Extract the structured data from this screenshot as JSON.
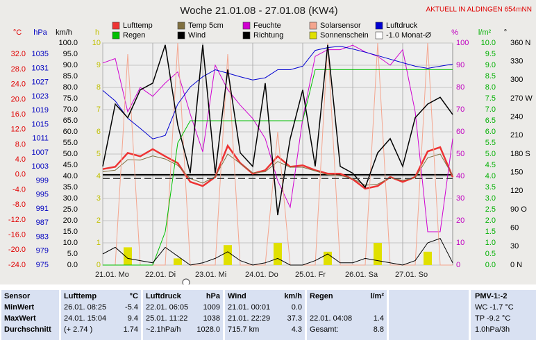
{
  "chart_data": {
    "type": "line",
    "title": "Woche 21.01.08 - 27.01.08 (KW4)",
    "subtitle": "AKTUELL IN ALDINGEN 654mNN",
    "x": [
      0,
      6,
      12,
      18,
      24,
      30,
      36,
      42,
      48,
      54,
      60,
      66,
      72,
      78,
      84,
      90,
      96,
      102,
      108,
      114,
      120,
      126,
      132,
      138,
      144,
      150,
      156,
      162,
      168
    ],
    "xlim": [
      0,
      168
    ],
    "xticks": [
      {
        "value": 0,
        "label": "21.01. Mo"
      },
      {
        "value": 24,
        "label": "22.01. Di"
      },
      {
        "value": 48,
        "label": "23.01. Mi"
      },
      {
        "value": 72,
        "label": "24.01. Do"
      },
      {
        "value": 96,
        "label": "25.01. Fr"
      },
      {
        "value": 120,
        "label": "26.01. Sa"
      },
      {
        "value": 144,
        "label": "27.01. So"
      }
    ],
    "grid": true,
    "axes": [
      {
        "label": "°C",
        "color": "#e00000",
        "ylim": [
          -24,
          35
        ],
        "yticks": [
          {
            "value": 32,
            "label": "32.0"
          },
          {
            "value": 28,
            "label": "28.0"
          },
          {
            "value": 24,
            "label": "24.0"
          },
          {
            "value": 20,
            "label": "20.0"
          },
          {
            "value": 16,
            "label": "16.0"
          },
          {
            "value": 12,
            "label": "12.0"
          },
          {
            "value": 8,
            "label": "8.0"
          },
          {
            "value": 4,
            "label": "4.0"
          },
          {
            "value": 0,
            "label": "0.0"
          },
          {
            "value": -4,
            "label": "-4.0"
          },
          {
            "value": -8,
            "label": "-8.0"
          },
          {
            "value": -12,
            "label": "-12.0"
          },
          {
            "value": -16,
            "label": "-16.0"
          },
          {
            "value": -20,
            "label": "-20.0"
          },
          {
            "value": -24,
            "label": "-24.0"
          }
        ]
      },
      {
        "label": "hPa",
        "color": "#0000c0",
        "ylim": [
          975,
          1038.2
        ],
        "yticks": [
          1035,
          1031,
          1027,
          1023,
          1019,
          1015,
          1011,
          1007,
          1003,
          999,
          995,
          991,
          987,
          983,
          979,
          975
        ]
      },
      {
        "label": "km/h",
        "color": "#000000",
        "ylim": [
          0,
          100
        ],
        "yticks": [
          {
            "value": 100,
            "label": "100.0"
          },
          {
            "value": 95,
            "label": "95.0"
          },
          {
            "value": 90,
            "label": "90.0"
          },
          {
            "value": 85,
            "label": "85.0"
          },
          {
            "value": 80,
            "label": "80.0"
          },
          {
            "value": 75,
            "label": "75.0"
          },
          {
            "value": 70,
            "label": "70.0"
          },
          {
            "value": 65,
            "label": "65.0"
          },
          {
            "value": 60,
            "label": "60.0"
          },
          {
            "value": 55,
            "label": "55.0"
          },
          {
            "value": 50,
            "label": "50.0"
          },
          {
            "value": 45,
            "label": "45.0"
          },
          {
            "value": 40,
            "label": "40.0"
          },
          {
            "value": 35,
            "label": "35.0"
          },
          {
            "value": 30,
            "label": "30.0"
          },
          {
            "value": 25,
            "label": "25.0"
          },
          {
            "value": 20,
            "label": "20.0"
          },
          {
            "value": 15,
            "label": "15.0"
          },
          {
            "value": 10,
            "label": "10.0"
          },
          {
            "value": 5,
            "label": "5.0"
          },
          {
            "value": 0,
            "label": "0.0"
          }
        ]
      },
      {
        "label": "h",
        "color": "#c0c000",
        "ylim": [
          0,
          10
        ],
        "yticks": [
          10,
          9,
          8,
          7,
          6,
          5,
          4,
          3,
          2,
          1,
          0
        ]
      },
      {
        "label": "%",
        "color": "#c000c0",
        "ylim": [
          0,
          100
        ],
        "yticks": [
          100,
          90,
          80,
          70,
          60,
          50,
          40,
          30,
          20,
          10,
          0
        ]
      },
      {
        "label": "l/m²",
        "color": "#00b000",
        "ylim": [
          0,
          10
        ],
        "yticks": [
          {
            "value": 10,
            "label": "10.0"
          },
          {
            "value": 9.5,
            "label": "9.5"
          },
          {
            "value": 9,
            "label": "9.0"
          },
          {
            "value": 8.5,
            "label": "8.5"
          },
          {
            "value": 8,
            "label": "8.0"
          },
          {
            "value": 7.5,
            "label": "7.5"
          },
          {
            "value": 7,
            "label": "7.0"
          },
          {
            "value": 6.5,
            "label": "6.5"
          },
          {
            "value": 6,
            "label": "6.0"
          },
          {
            "value": 5.5,
            "label": "5.5"
          },
          {
            "value": 5,
            "label": "5.0"
          },
          {
            "value": 4.5,
            "label": "4.5"
          },
          {
            "value": 4,
            "label": "4.0"
          },
          {
            "value": 3.5,
            "label": "3.5"
          },
          {
            "value": 3,
            "label": "3.0"
          },
          {
            "value": 2.5,
            "label": "2.5"
          },
          {
            "value": 2,
            "label": "2.0"
          },
          {
            "value": 1.5,
            "label": "1.5"
          },
          {
            "value": 1,
            "label": "1.0"
          },
          {
            "value": 0.5,
            "label": "0.5"
          },
          {
            "value": 0,
            "label": "0.0"
          }
        ]
      },
      {
        "label": "°",
        "color": "#000000",
        "ylim": [
          0,
          360
        ],
        "yticks": [
          {
            "value": 360,
            "label": "360 N"
          },
          330,
          300,
          {
            "value": 270,
            "label": "270 W"
          },
          240,
          210,
          {
            "value": 180,
            "label": "180 S"
          },
          150,
          120,
          {
            "value": 90,
            "label": "90 O"
          },
          60,
          30,
          {
            "value": 0,
            "label": "0 N"
          }
        ]
      }
    ],
    "series": [
      {
        "name": "Lufttemp",
        "color": "#ee3333",
        "axis": 0,
        "type": "line",
        "values": [
          1.5,
          2.1,
          5.8,
          4.9,
          6.8,
          4.9,
          3.1,
          -1.9,
          -3.0,
          -0.6,
          7.7,
          3.1,
          0.3,
          1.2,
          4.9,
          2.1,
          2.5,
          1.2,
          0.3,
          0.3,
          -1.2,
          -3.7,
          -3.0,
          -0.6,
          -1.9,
          -0.6,
          6.2,
          7.3,
          -0.6
        ]
      },
      {
        "name": "Temp 5cm",
        "color": "#807040",
        "axis": 0,
        "type": "line",
        "values": [
          0.8,
          1.2,
          4.0,
          3.9,
          5.0,
          4.2,
          2.5,
          -1.0,
          -2.2,
          -0.5,
          5.5,
          3.0,
          0.5,
          0.8,
          3.5,
          2.0,
          2.0,
          1.0,
          0.0,
          -0.2,
          -1.0,
          -2.8,
          -2.5,
          -0.8,
          -1.5,
          -0.8,
          4.5,
          5.5,
          -0.2
        ]
      },
      {
        "name": "Feuchte",
        "color": "#d000d0",
        "axis": 4,
        "type": "line",
        "values": [
          91,
          93,
          69,
          80,
          76,
          82,
          87,
          68,
          51,
          90,
          79,
          72,
          66,
          57,
          38,
          26,
          66,
          94,
          97,
          97,
          99,
          96,
          94,
          90,
          97,
          69,
          15,
          15,
          57
        ]
      },
      {
        "name": "Solarsensor",
        "color": "#f4a58e",
        "axis": 4,
        "type": "line",
        "values": [
          0,
          0,
          95,
          0,
          0,
          0,
          100,
          0,
          0,
          0,
          95,
          0,
          0,
          0,
          60,
          0,
          0,
          0,
          100,
          0,
          0,
          0,
          100,
          0,
          0,
          0,
          100,
          0,
          0
        ]
      },
      {
        "name": "Luftdruck",
        "color": "#0000d0",
        "axis": 1,
        "type": "line",
        "values": [
          1024.7,
          1021.7,
          1016.8,
          1013.9,
          1010.9,
          1011.9,
          1020.8,
          1025.7,
          1028.6,
          1030.6,
          1029.6,
          1028.6,
          1027.7,
          1028.3,
          1030.6,
          1030.6,
          1031.6,
          1036.1,
          1036.9,
          1037.3,
          1036.5,
          1035.6,
          1034.6,
          1033.6,
          1032.6,
          1031.6,
          1031.0,
          1031.6,
          1032.2
        ]
      },
      {
        "name": "Regen",
        "color": "#00c000",
        "axis": 5,
        "type": "line",
        "values": [
          0,
          0,
          0,
          0,
          0,
          1.5,
          5.5,
          6.5,
          6.5,
          6.5,
          6.5,
          6.5,
          6.5,
          6.5,
          6.5,
          6.5,
          6.5,
          8.8,
          8.8,
          8.8,
          8.8,
          8.8,
          8.8,
          8.8,
          8.8,
          8.8,
          8.8,
          8.8,
          8.8
        ]
      },
      {
        "name": "Wind",
        "color": "#000000",
        "axis": 2,
        "type": "line",
        "values": [
          5,
          8,
          3,
          2,
          1,
          8,
          4,
          0,
          1,
          3,
          6,
          2,
          0,
          1,
          3,
          0,
          0,
          2,
          5,
          1,
          1,
          3,
          2,
          1,
          0,
          2,
          10,
          12,
          1
        ]
      },
      {
        "name": "Richtung",
        "color": "#000000",
        "axis": 6,
        "type": "line",
        "values": [
          160,
          261,
          239,
          284,
          295,
          357,
          227,
          149,
          357,
          149,
          317,
          182,
          160,
          295,
          81,
          205,
          284,
          160,
          357,
          160,
          149,
          126,
          182,
          205,
          160,
          239,
          261,
          272,
          244
        ]
      },
      {
        "name": "Sonnenschein",
        "color": "#e0e000",
        "axis": 3,
        "type": "bar",
        "values": [
          0,
          0,
          0.8,
          0,
          0,
          0,
          0.3,
          0,
          0,
          0,
          0.9,
          0,
          0,
          0,
          1.0,
          0,
          0,
          0,
          0.6,
          0,
          0,
          0,
          1.0,
          0,
          0,
          0,
          0.6,
          0,
          0
        ]
      },
      {
        "name": "-1.0 Monat-Ø",
        "color": "#404040",
        "axis": 0,
        "type": "hline",
        "value": -1
      }
    ]
  },
  "stats": {
    "row_labels": [
      "Sensor",
      "MinWert",
      "MaxWert",
      "Durchschnitt"
    ],
    "groups": [
      {
        "name": "Lufttemp",
        "unit": "°C",
        "cells": [
          [
            "26.01. 08:25",
            "-5.4"
          ],
          [
            "24.01. 15:04",
            "9.4"
          ],
          [
            "(+ 2.74 )",
            "1.74"
          ]
        ]
      },
      {
        "name": "Luftdruck",
        "unit": "hPa",
        "cells": [
          [
            "22.01. 06:05",
            "1009"
          ],
          [
            "25.01. 11:22",
            "1038"
          ],
          [
            "~2.1hPa/h",
            "1028.0"
          ]
        ]
      },
      {
        "name": "Wind",
        "unit": "km/h",
        "cells": [
          [
            "21.01. 00:01",
            "0.0"
          ],
          [
            "21.01. 22:29",
            "37.3"
          ],
          [
            "715.7 km",
            "4.3"
          ]
        ]
      },
      {
        "name": "Regen",
        "unit": "l/m²",
        "cells": [
          null,
          [
            "22.01. 04:08",
            "1.4"
          ],
          [
            "Gesamt:",
            "8.8"
          ]
        ]
      }
    ],
    "pmv": {
      "title": "PMV-1:-2",
      "lines": [
        "WC -1.7 °C",
        "TP -9.2 °C",
        "1.0hPa/3h"
      ]
    }
  }
}
